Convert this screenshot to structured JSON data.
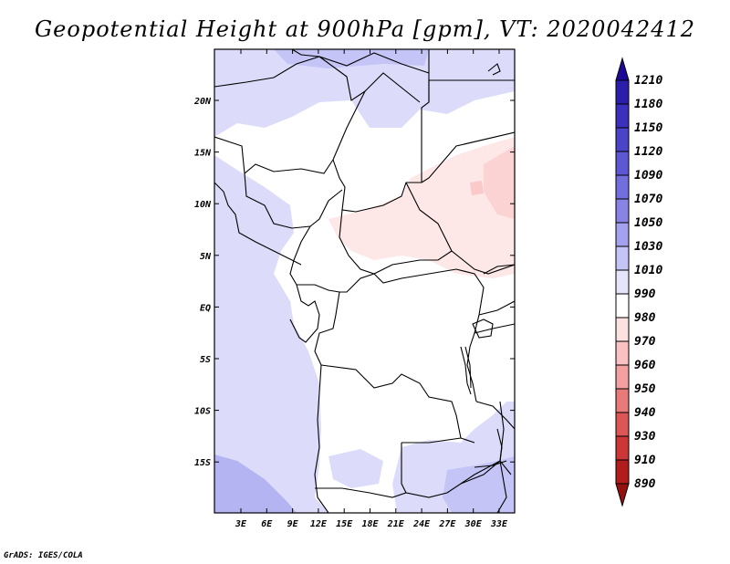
{
  "title": "Geopotential Height at 900hPa [gpm], VT: 2020042412",
  "credit": "GrADS: IGES/COLA",
  "map": {
    "lon_labels": [
      "3E",
      "6E",
      "9E",
      "12E",
      "15E",
      "18E",
      "21E",
      "24E",
      "27E",
      "30E",
      "33E"
    ],
    "lat_labels": [
      "20N",
      "15N",
      "10N",
      "5N",
      "EQ",
      "5S",
      "10S",
      "15S"
    ]
  },
  "colorbar": {
    "levels": [
      "1210",
      "1180",
      "1150",
      "1120",
      "1090",
      "1070",
      "1050",
      "1030",
      "1010",
      "990",
      "980",
      "970",
      "960",
      "950",
      "940",
      "930",
      "910",
      "890"
    ],
    "colors": [
      "#1c0a96",
      "#2a1eaa",
      "#3a30bd",
      "#4a44c9",
      "#5c58d4",
      "#716ede",
      "#8884e6",
      "#a4a2ef",
      "#c4c4f6",
      "#e4e4fb",
      "#ffffff",
      "#fde0e0",
      "#f9c1c1",
      "#f3a0a0",
      "#e87a7a",
      "#dc5656",
      "#cc3636",
      "#b31c1c",
      "#96100f"
    ]
  }
}
